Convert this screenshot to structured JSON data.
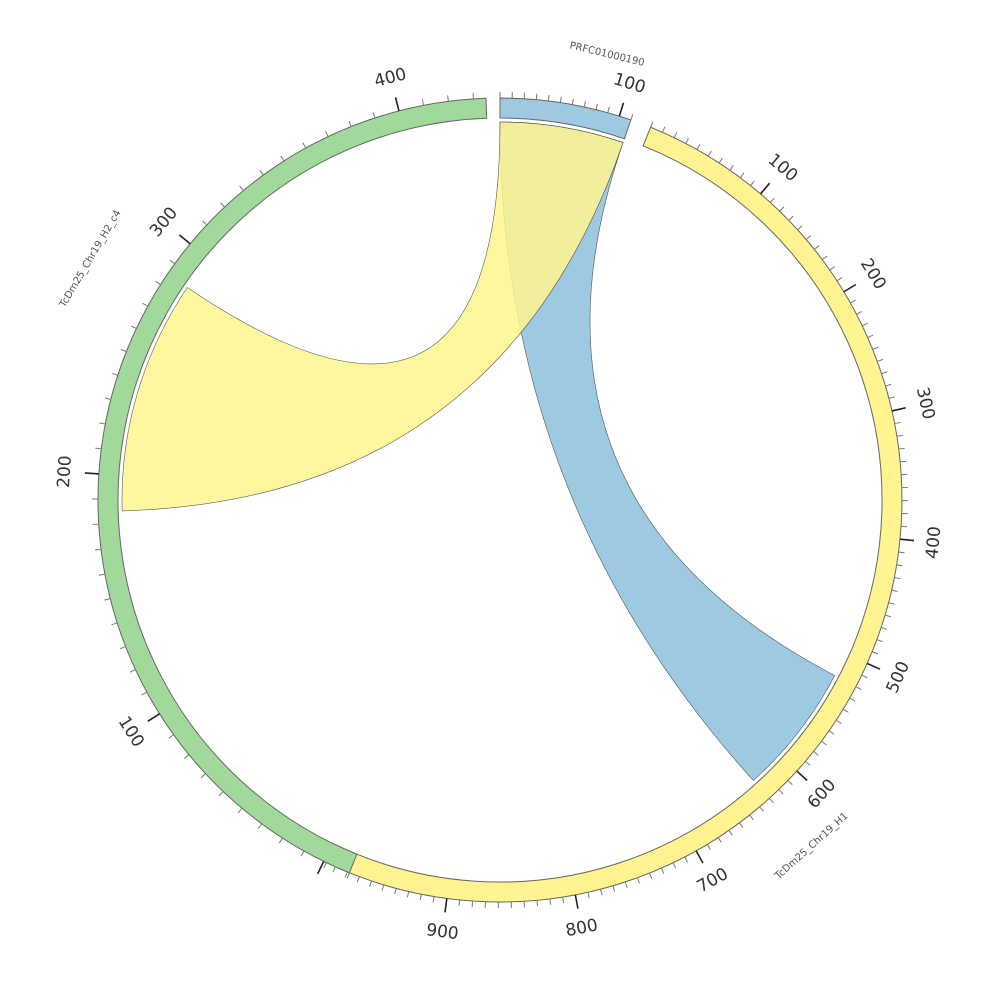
{
  "chart_data": {
    "type": "chord",
    "sectors": [
      {
        "name": "PRFC01000190",
        "length": 110,
        "color": "#9ECAE1",
        "start_deg": 0,
        "end_deg": 19,
        "ticks": [
          {
            "value": 100,
            "label": "100"
          }
        ]
      },
      {
        "name": "TcDm25_Chr19_H1",
        "length": 1000,
        "color": "#FFF48F",
        "start_deg": 22,
        "end_deg": 206,
        "ticks": [
          {
            "value": 100,
            "label": "100"
          },
          {
            "value": 200,
            "label": "200"
          },
          {
            "value": 300,
            "label": "300"
          },
          {
            "value": 400,
            "label": "400"
          },
          {
            "value": 500,
            "label": "500"
          },
          {
            "value": 600,
            "label": "600"
          },
          {
            "value": 700,
            "label": "700"
          },
          {
            "value": 800,
            "label": "800"
          },
          {
            "value": 900,
            "label": "900"
          }
        ]
      },
      {
        "name": "TcDm25_Chr19_H2_c4",
        "length": 435,
        "color": "#A1D99B",
        "start_deg": 202,
        "end_deg": 358,
        "ticks": [
          {
            "value": 100,
            "label": "100"
          },
          {
            "value": 200,
            "label": "200"
          },
          {
            "value": 300,
            "label": "300"
          },
          {
            "value": 400,
            "label": "400"
          }
        ]
      }
    ],
    "links": [
      {
        "color": "#9ECAE1",
        "opacity": 1,
        "source": {
          "sector": "PRFC01000190",
          "start": 0,
          "end": 110
        },
        "target": {
          "sector": "TcDm25_Chr19_H1",
          "start": 520,
          "end": 630
        }
      },
      {
        "color": "#FFF48F",
        "opacity": 0.85,
        "source": {
          "sector": "PRFC01000190",
          "start": 0,
          "end": 110
        },
        "target": {
          "sector": "TcDm25_Chr19_H2_c4",
          "start": 185,
          "end": 285
        }
      }
    ]
  }
}
